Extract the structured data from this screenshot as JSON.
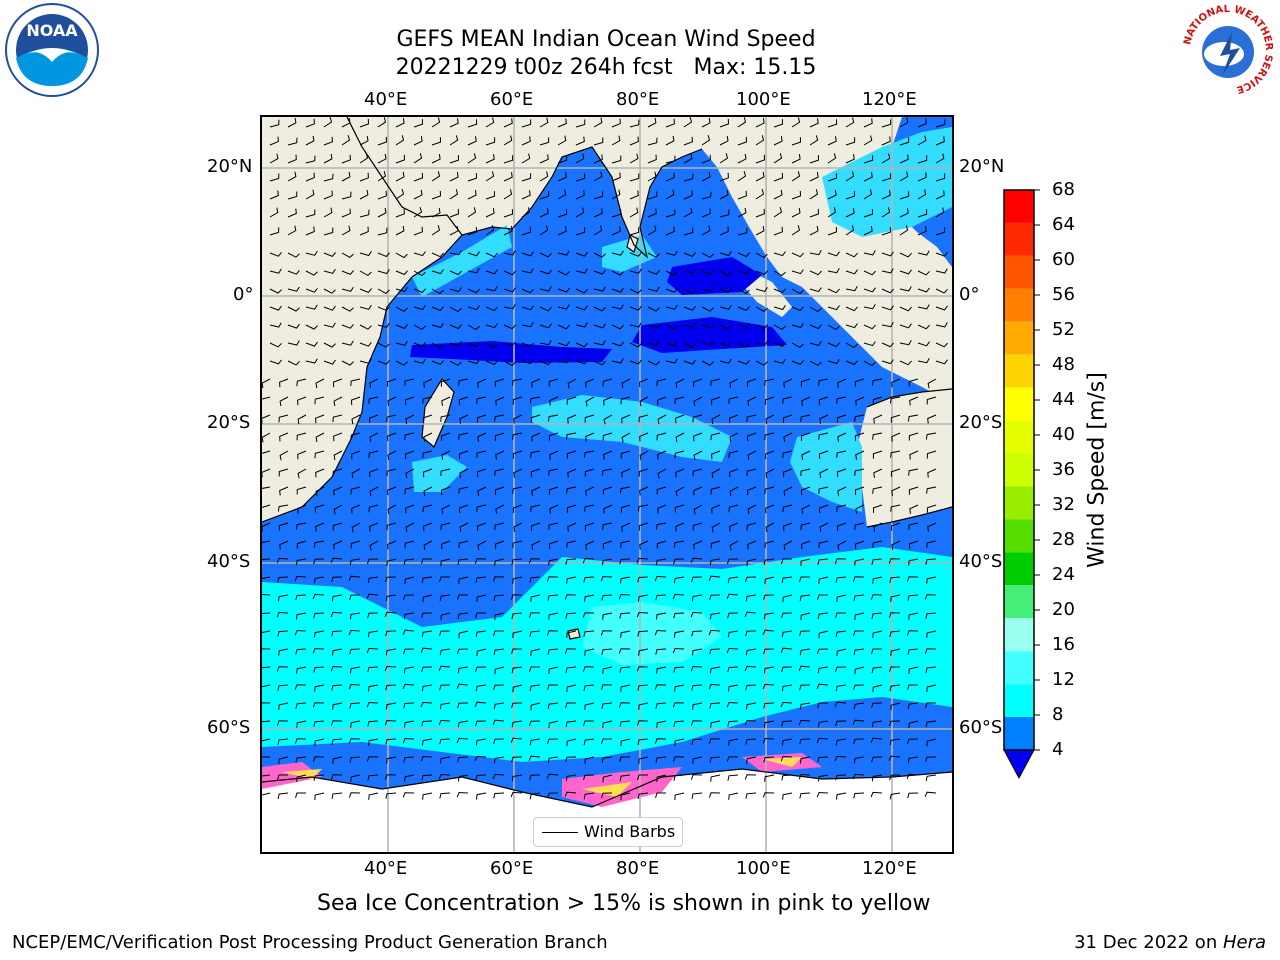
{
  "title_line1": "GEFS MEAN Indian Ocean Wind Speed",
  "title_line2": "20221229 t00z 264h fcst   Max: 15.15",
  "lon_labels": [
    "40°E",
    "60°E",
    "80°E",
    "100°E",
    "120°E"
  ],
  "lat_labels_left": [
    "20°N",
    "0°",
    "20°S",
    "40°S",
    "60°S"
  ],
  "lat_labels_right": [
    "20°N",
    "0°",
    "20°S",
    "40°S",
    "60°S"
  ],
  "legend_label": "Wind Barbs",
  "colorbar": {
    "label": "Wind Speed [m/s]",
    "ticks": [
      "68",
      "64",
      "60",
      "56",
      "52",
      "48",
      "44",
      "40",
      "36",
      "32",
      "28",
      "24",
      "20",
      "16",
      "12",
      "8",
      "4"
    ],
    "colors": [
      "#ff0000",
      "#ff2a00",
      "#ff5500",
      "#ff8000",
      "#ffaa00",
      "#ffd400",
      "#ffff00",
      "#e6ff00",
      "#ccff00",
      "#99ee00",
      "#55dd00",
      "#00cc00",
      "#44ee77",
      "#99ffee",
      "#44ffff",
      "#00ffff",
      "#0080ff"
    ],
    "extend_color": "#0000ee"
  },
  "sea_ice_note": "Sea Ice Concentration > 15% is shown in pink to yellow",
  "footer_left": "NCEP/EMC/Verification Post Processing Product Generation Branch",
  "footer_right_date": "31 Dec 2022 on ",
  "footer_right_machine": "Hera",
  "logos": {
    "left": "NOAA",
    "right_text": "NATIONAL WEATHER SERVICE"
  },
  "colors": {
    "land": "#eeeddf",
    "ocean_base": "#1a73ff",
    "ocean_light": "#33ddff",
    "ocean_cyan": "#00ffff",
    "ocean_dark": "#0000ee",
    "ice": "#ffffff"
  }
}
